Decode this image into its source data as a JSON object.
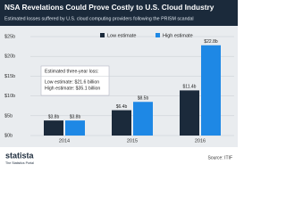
{
  "chart_data": {
    "type": "bar",
    "title": "NSA Revelations Could Prove Costly to U.S. Cloud Industry",
    "subtitle": "Estimated losses suffered by U.S. cloud computing providers following the PRISM scandal",
    "categories": [
      "2014",
      "2015",
      "2016"
    ],
    "series": [
      {
        "name": "Low estimate",
        "color": "#1b2a3b",
        "values": [
          3.8,
          6.4,
          11.4
        ],
        "value_labels": [
          "$3.8b",
          "$6.4b",
          "$11.4b"
        ]
      },
      {
        "name": "High estimate",
        "color": "#1e88e5",
        "values": [
          3.8,
          8.5,
          22.8
        ],
        "value_labels": [
          "$3.8b",
          "$8.5b",
          "$22.8b"
        ]
      }
    ],
    "ylim": [
      0,
      25
    ],
    "yticks": [
      {
        "value": 0,
        "label": "$0b"
      },
      {
        "value": 5,
        "label": "$5b"
      },
      {
        "value": 10,
        "label": "$10b"
      },
      {
        "value": 15,
        "label": "$15b"
      },
      {
        "value": 20,
        "label": "$20b"
      },
      {
        "value": 25,
        "label": "$25b"
      }
    ],
    "grid": true,
    "legend": "top",
    "annotation": [
      "Estimated three-year loss:",
      "Low estimate: $21.6 billion",
      "High estimate: $35.1 billion"
    ]
  },
  "footer": {
    "brand": "statista",
    "tagline": "The Statistics Portal",
    "source": "Source: ITIF"
  }
}
